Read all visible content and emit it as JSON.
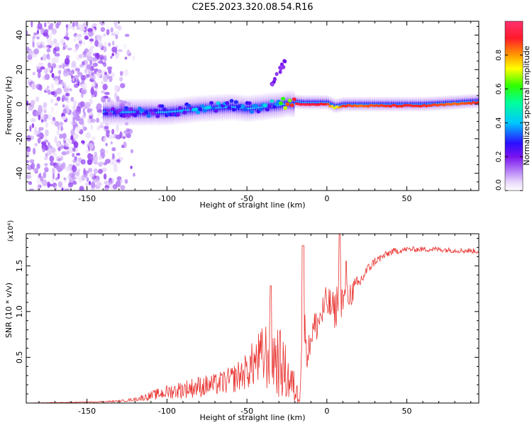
{
  "title": "C2E5.2023.320.08.54.R16",
  "colors": {
    "snr_line": "#e8322f",
    "scatter_light": "#d9b8f5",
    "scatter_dark": "#7a1cf0",
    "axis": "#000000"
  },
  "chart_data": [
    {
      "type": "heatmap",
      "title": "C2E5.2023.320.08.54.R16",
      "xlabel": "Height of straight line (km)",
      "ylabel": "Frequency (Hz)",
      "xlim": [
        -188,
        95
      ],
      "ylim": [
        -50,
        48
      ],
      "x_ticks": [
        -150,
        -100,
        -50,
        0,
        50
      ],
      "y_ticks": [
        -40,
        -20,
        0,
        20,
        40
      ],
      "colorbar": {
        "label": "Normalized spectral amplitude",
        "range": [
          0,
          1
        ],
        "ticks": [
          "0.0",
          "0.2",
          "0.4",
          "0.6",
          "0.8"
        ],
        "tick_values": [
          0.0,
          0.2,
          0.4,
          0.6,
          0.8
        ],
        "colormap": [
          "#ffffff",
          "#e8d6fb",
          "#b27af7",
          "#7a12ee",
          "#2a0fff",
          "#00c8ff",
          "#00ff9a",
          "#30ff00",
          "#ffff00",
          "#ff9a00",
          "#ff1a2a",
          "#ff3070"
        ]
      },
      "ridge": {
        "x": [
          -138,
          -120,
          -100,
          -90,
          -80,
          -60,
          -50,
          -40,
          -30,
          -25,
          -15,
          0,
          5,
          10,
          20,
          40,
          60,
          80,
          95
        ],
        "freq": [
          -4,
          -4,
          -4,
          -3,
          -2,
          -1,
          -2,
          -1,
          0,
          1,
          0,
          0,
          -2,
          -1,
          -1,
          -1,
          -1,
          0,
          1
        ],
        "amplitude": [
          0.3,
          0.35,
          0.35,
          0.4,
          0.4,
          0.4,
          0.4,
          0.4,
          0.45,
          0.9,
          0.95,
          0.9,
          0.7,
          0.9,
          0.85,
          0.9,
          0.9,
          0.85,
          0.9
        ]
      },
      "features": [
        {
          "x_range": [
            -35,
            -26
          ],
          "freq_range": [
            12,
            24
          ],
          "amplitude": 0.2
        }
      ],
      "noise_region": {
        "x_range": [
          -188,
          -120
        ],
        "freq_range": [
          -50,
          48
        ],
        "amplitude_range": [
          0.05,
          0.25
        ]
      }
    },
    {
      "type": "line",
      "xlabel": "Height of straight line (km)",
      "ylabel": "SNR (10 * v/v)",
      "y_scale_label": "(x10⁴)",
      "xlim": [
        -188,
        95
      ],
      "ylim": [
        0,
        1.85
      ],
      "x_ticks": [
        -150,
        -100,
        -50,
        0,
        50
      ],
      "y_ticks": [
        "0.5",
        "1.0",
        "1.5"
      ],
      "y_tick_values": [
        0.5,
        1.0,
        1.5
      ],
      "series": [
        {
          "x": [
            -188,
            -150,
            -130,
            -120,
            -110,
            -100,
            -90,
            -80,
            -70,
            -60,
            -50,
            -45,
            -40,
            -35,
            -30,
            -25,
            -20,
            -17,
            -15,
            -12,
            -10,
            -5,
            0,
            5,
            8,
            10,
            12,
            15,
            20,
            25,
            30,
            35,
            40,
            50,
            60,
            70,
            80,
            95
          ],
          "y": [
            0.0,
            0.01,
            0.02,
            0.04,
            0.08,
            0.12,
            0.15,
            0.18,
            0.2,
            0.25,
            0.35,
            0.45,
            0.5,
            0.55,
            0.45,
            0.3,
            0.15,
            0.05,
            1.0,
            0.5,
            0.75,
            0.9,
            1.1,
            1.0,
            1.2,
            1.1,
            1.15,
            1.2,
            1.3,
            1.45,
            1.55,
            1.6,
            1.65,
            1.68,
            1.68,
            1.68,
            1.67,
            1.66
          ],
          "noise_amplitude": [
            0.0,
            0.005,
            0.01,
            0.02,
            0.05,
            0.08,
            0.1,
            0.12,
            0.12,
            0.15,
            0.2,
            0.28,
            0.35,
            0.45,
            0.4,
            0.3,
            0.18,
            0.05,
            0.3,
            0.15,
            0.2,
            0.2,
            0.2,
            0.2,
            0.3,
            0.2,
            0.15,
            0.15,
            0.1,
            0.06,
            0.05,
            0.04,
            0.04,
            0.03,
            0.03,
            0.03,
            0.03,
            0.03
          ]
        }
      ]
    }
  ]
}
